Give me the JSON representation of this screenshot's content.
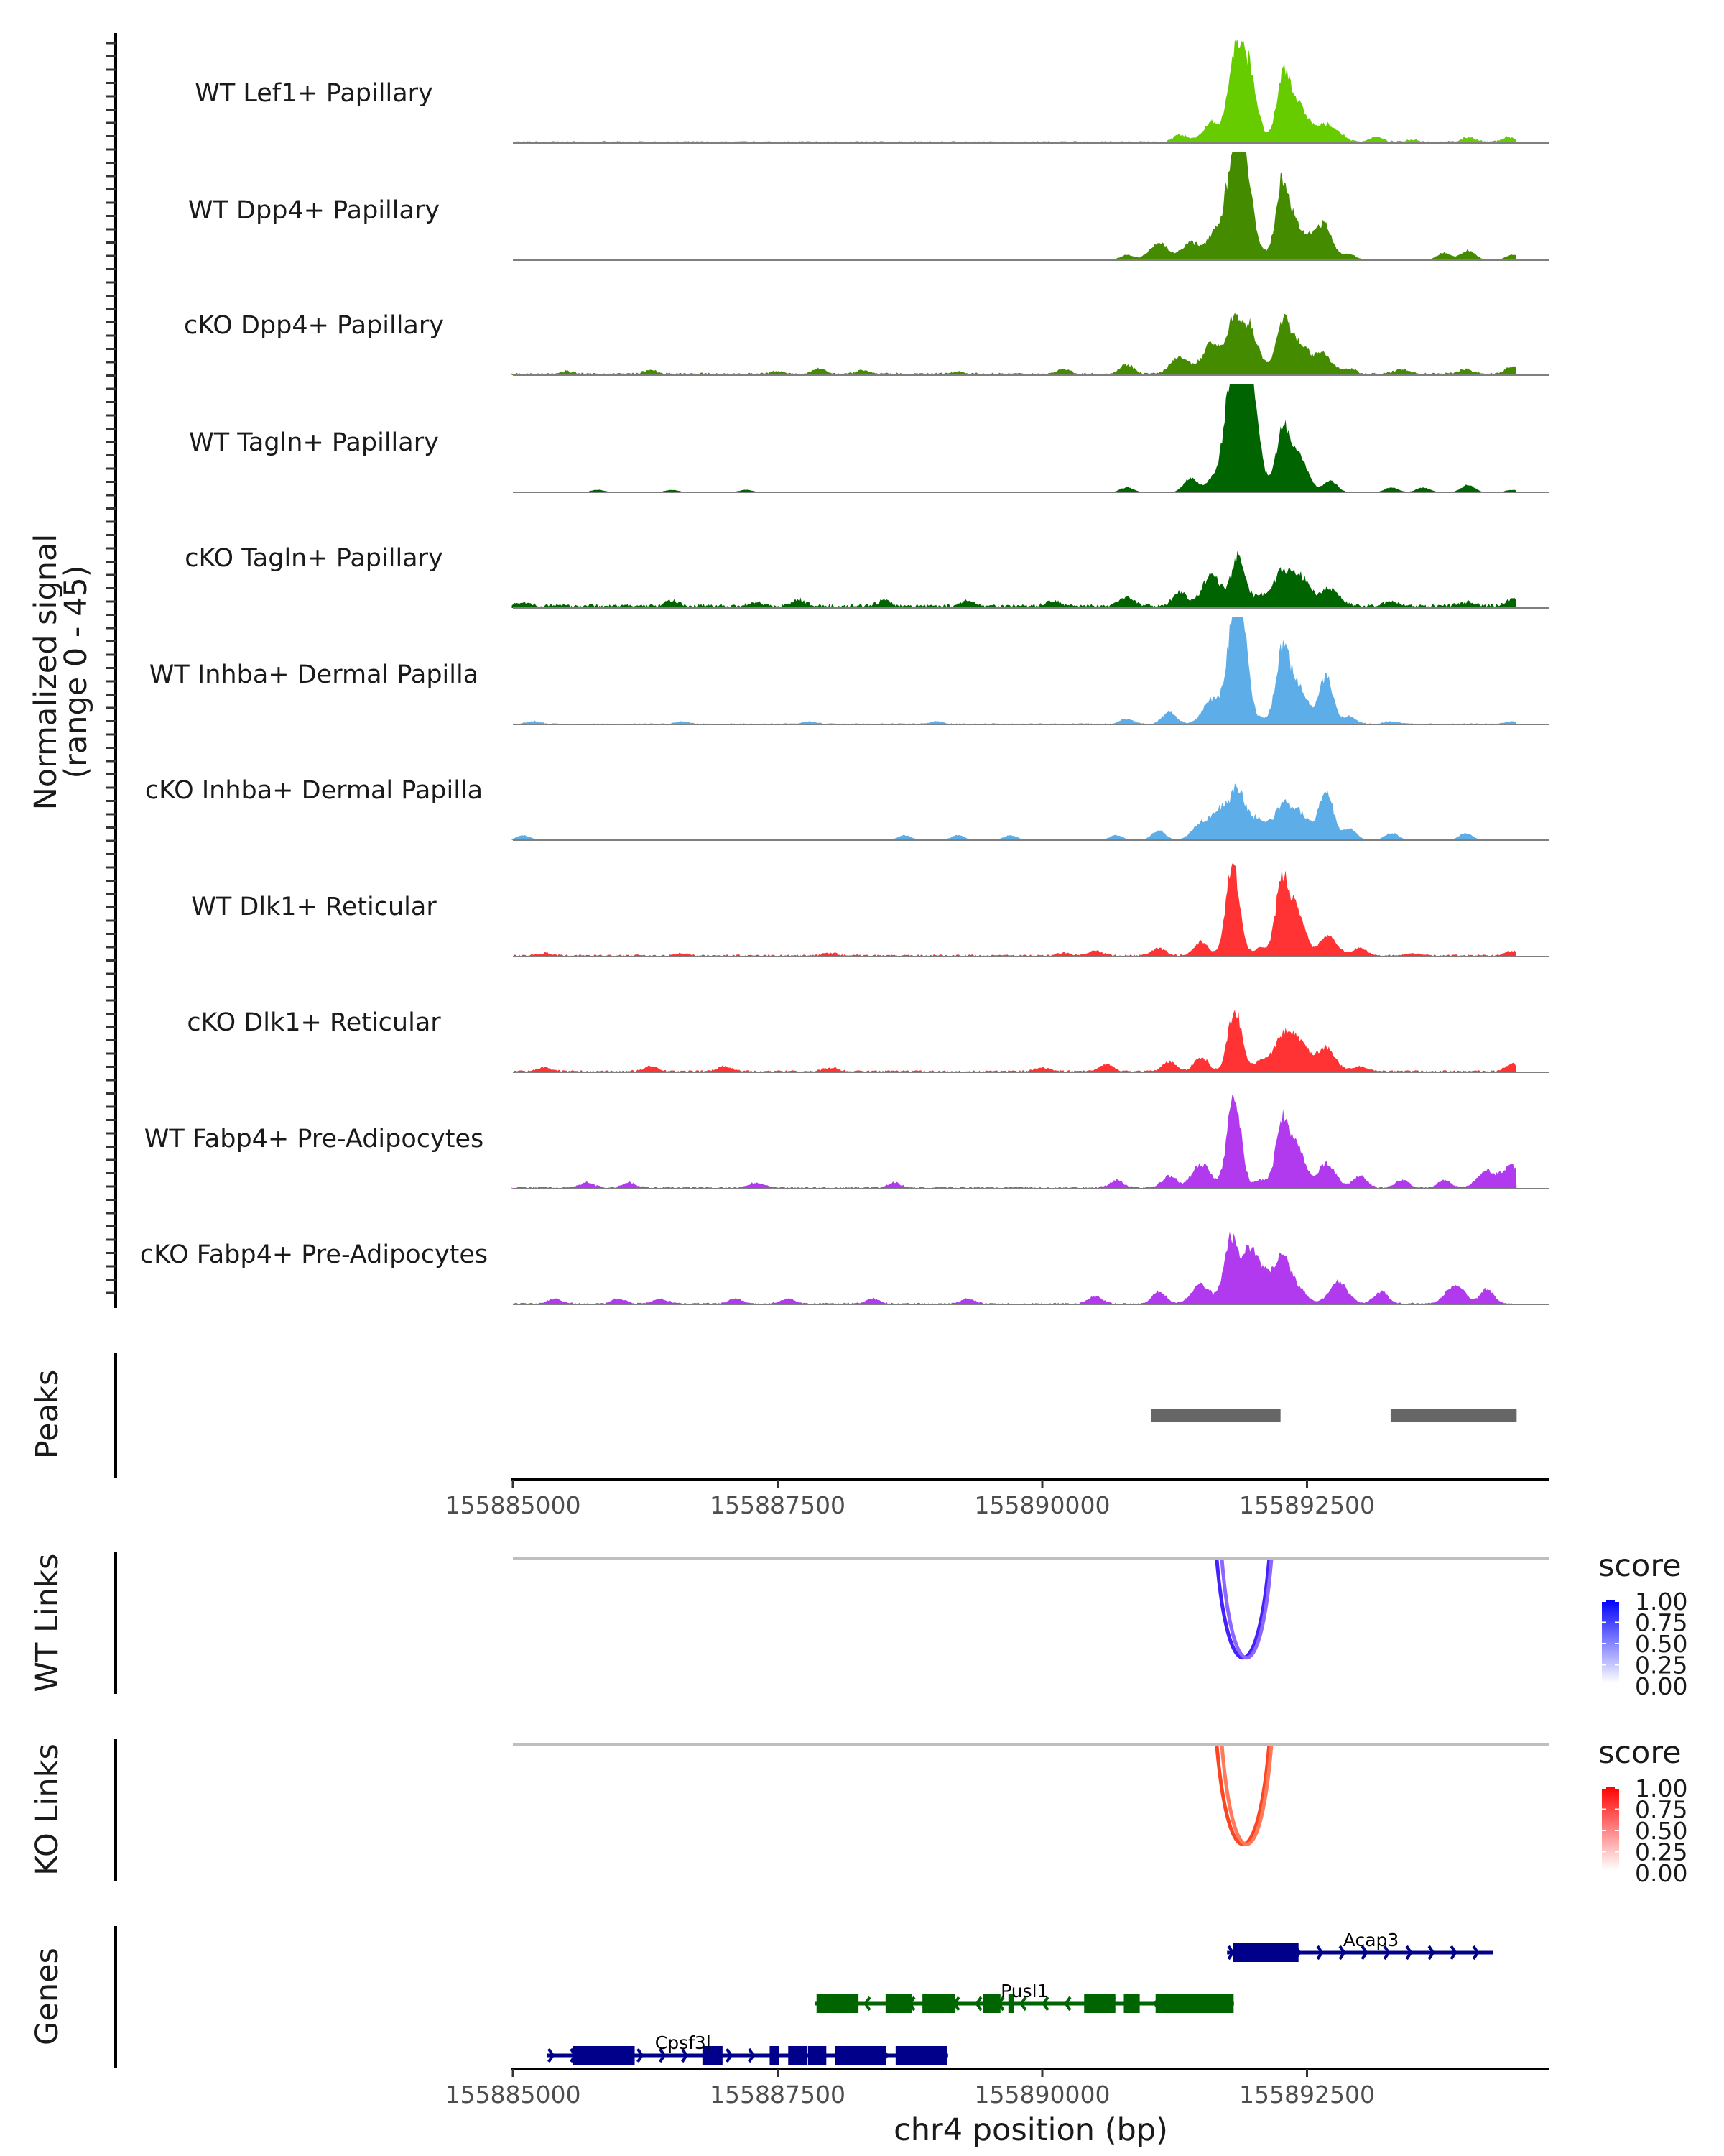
{
  "chart_data": {
    "type": "area",
    "title": "",
    "region": "chr4",
    "xlabel": "chr4 position (bp)",
    "ylabel": "Normalized signal",
    "ylabel_sub": "(range 0 - 45)",
    "xlim": [
      155884990,
      155894780
    ],
    "ylim": [
      0,
      45
    ],
    "x_ticks": [
      155885000,
      155887500,
      155890000,
      155892500
    ],
    "x_tick_labels": [
      "155885000",
      "155887500",
      "155890000",
      "155892500"
    ],
    "grid": false,
    "signal_end_bp": 155894480,
    "tracks": [
      {
        "name": "WT Lef1+ Papillary",
        "color": "#66CC00",
        "peaks": [
          [
            155891300,
            3
          ],
          [
            155891600,
            8
          ],
          [
            155891820,
            36
          ],
          [
            155891950,
            30
          ],
          [
            155892060,
            3
          ],
          [
            155892280,
            27
          ],
          [
            155892420,
            14
          ],
          [
            155892560,
            2
          ],
          [
            155892700,
            7
          ],
          [
            155892850,
            1
          ],
          [
            155893150,
            2
          ],
          [
            155893500,
            1
          ],
          [
            155894030,
            2
          ],
          [
            155894400,
            2
          ]
        ],
        "background": 0.5
      },
      {
        "name": "WT Dpp4+ Papillary",
        "color": "#458B00",
        "peaks": [
          [
            155890800,
            2
          ],
          [
            155891100,
            7
          ],
          [
            155891400,
            7
          ],
          [
            155891650,
            13
          ],
          [
            155891810,
            42
          ],
          [
            155891920,
            38
          ],
          [
            155892060,
            3
          ],
          [
            155892270,
            32
          ],
          [
            155892420,
            12
          ],
          [
            155892650,
            15
          ],
          [
            155892900,
            2
          ],
          [
            155893800,
            3
          ],
          [
            155894020,
            4
          ],
          [
            155894440,
            2
          ]
        ],
        "background": 0.2
      },
      {
        "name": "cKO Dpp4+ Papillary",
        "color": "#458B00",
        "peaks": [
          [
            155885500,
            1
          ],
          [
            155886300,
            1.5
          ],
          [
            155887500,
            1
          ],
          [
            155887900,
            2
          ],
          [
            155888300,
            1.5
          ],
          [
            155889200,
            1
          ],
          [
            155890200,
            2
          ],
          [
            155890800,
            4
          ],
          [
            155891300,
            7
          ],
          [
            155891600,
            13
          ],
          [
            155891810,
            22
          ],
          [
            155891950,
            18
          ],
          [
            155892060,
            5
          ],
          [
            155892270,
            20
          ],
          [
            155892420,
            13
          ],
          [
            155892650,
            8
          ],
          [
            155892900,
            2
          ],
          [
            155893400,
            2
          ],
          [
            155894000,
            2
          ],
          [
            155894440,
            3
          ]
        ],
        "background": 0.6
      },
      {
        "name": "WT Tagln+ Papillary",
        "color": "#006400",
        "peaks": [
          [
            155885800,
            1
          ],
          [
            155886500,
            1
          ],
          [
            155887200,
            1
          ],
          [
            155890800,
            2
          ],
          [
            155891400,
            6
          ],
          [
            155891650,
            7
          ],
          [
            155891780,
            37
          ],
          [
            155891880,
            40
          ],
          [
            155891980,
            38
          ],
          [
            155892060,
            4
          ],
          [
            155892270,
            24
          ],
          [
            155892420,
            15
          ],
          [
            155892720,
            5
          ],
          [
            155893300,
            2
          ],
          [
            155893600,
            2
          ],
          [
            155894020,
            3
          ],
          [
            155894440,
            1
          ]
        ],
        "background": 0
      },
      {
        "name": "cKO Tagln+ Papillary",
        "color": "#006400",
        "peaks": [
          [
            155885100,
            1.5
          ],
          [
            155886500,
            2
          ],
          [
            155887300,
            1.5
          ],
          [
            155887700,
            2.5
          ],
          [
            155888500,
            2
          ],
          [
            155889300,
            2
          ],
          [
            155890100,
            2
          ],
          [
            155890800,
            4
          ],
          [
            155891300,
            6
          ],
          [
            155891600,
            13
          ],
          [
            155891850,
            20
          ],
          [
            155892050,
            4
          ],
          [
            155892270,
            14
          ],
          [
            155892450,
            11
          ],
          [
            155892720,
            7
          ],
          [
            155893300,
            2
          ],
          [
            155894000,
            1.5
          ],
          [
            155894440,
            3
          ]
        ],
        "background": 1
      },
      {
        "name": "WT Inhba+ Dermal Papilla",
        "color": "#5DADE8",
        "peaks": [
          [
            155885200,
            1
          ],
          [
            155886600,
            1
          ],
          [
            155887800,
            1
          ],
          [
            155889000,
            1
          ],
          [
            155890800,
            2
          ],
          [
            155891200,
            5
          ],
          [
            155891600,
            10
          ],
          [
            155891800,
            33
          ],
          [
            155891880,
            38
          ],
          [
            155892060,
            2
          ],
          [
            155892270,
            30
          ],
          [
            155892420,
            15
          ],
          [
            155892680,
            20
          ],
          [
            155892900,
            3
          ],
          [
            155893300,
            1
          ],
          [
            155894440,
            1
          ]
        ],
        "background": 0.3
      },
      {
        "name": "cKO Inhba+ Dermal Papilla",
        "color": "#5DADE8",
        "peaks": [
          [
            155885100,
            2
          ],
          [
            155888700,
            2
          ],
          [
            155889200,
            2
          ],
          [
            155889700,
            2
          ],
          [
            155890700,
            2
          ],
          [
            155891100,
            4
          ],
          [
            155891500,
            7
          ],
          [
            155891700,
            13
          ],
          [
            155891850,
            18
          ],
          [
            155892020,
            9
          ],
          [
            155892270,
            14
          ],
          [
            155892450,
            10
          ],
          [
            155892680,
            22
          ],
          [
            155892900,
            5
          ],
          [
            155893300,
            3
          ],
          [
            155894000,
            3
          ]
        ],
        "background": 0
      },
      {
        "name": "WT Dlk1+ Reticular",
        "color": "#FF3333",
        "peaks": [
          [
            155885300,
            1
          ],
          [
            155886600,
            1
          ],
          [
            155888000,
            1
          ],
          [
            155890200,
            1
          ],
          [
            155890500,
            2
          ],
          [
            155891100,
            3
          ],
          [
            155891500,
            6
          ],
          [
            155891800,
            38
          ],
          [
            155892060,
            3
          ],
          [
            155892270,
            33
          ],
          [
            155892420,
            18
          ],
          [
            155892700,
            8
          ],
          [
            155893000,
            3
          ],
          [
            155893500,
            1
          ],
          [
            155894440,
            2
          ]
        ],
        "background": 0.5
      },
      {
        "name": "cKO Dlk1+ Reticular",
        "color": "#FF3333",
        "peaks": [
          [
            155885300,
            1.5
          ],
          [
            155886300,
            2
          ],
          [
            155887000,
            2
          ],
          [
            155888000,
            1.5
          ],
          [
            155890000,
            1.5
          ],
          [
            155890600,
            3
          ],
          [
            155891200,
            4
          ],
          [
            155891500,
            6
          ],
          [
            155891820,
            26
          ],
          [
            155892060,
            4
          ],
          [
            155892270,
            14
          ],
          [
            155892430,
            11
          ],
          [
            155892680,
            10
          ],
          [
            155893000,
            2
          ],
          [
            155894440,
            3
          ]
        ],
        "background": 0.5
      },
      {
        "name": "WT Fabp4+ Pre-Adipocytes",
        "color": "#B23AEE",
        "peaks": [
          [
            155885700,
            2
          ],
          [
            155886100,
            2
          ],
          [
            155887300,
            2
          ],
          [
            155888600,
            2
          ],
          [
            155890700,
            3
          ],
          [
            155891200,
            5
          ],
          [
            155891500,
            10
          ],
          [
            155891810,
            39
          ],
          [
            155892060,
            3
          ],
          [
            155892270,
            28
          ],
          [
            155892420,
            16
          ],
          [
            155892680,
            10
          ],
          [
            155893000,
            5
          ],
          [
            155893400,
            3
          ],
          [
            155893800,
            3
          ],
          [
            155894200,
            7
          ],
          [
            155894440,
            9
          ]
        ],
        "background": 0.5
      },
      {
        "name": "cKO Fabp4+ Pre-Adipocytes",
        "color": "#B23AEE",
        "peaks": [
          [
            155885400,
            2
          ],
          [
            155886000,
            2
          ],
          [
            155886400,
            2
          ],
          [
            155887100,
            2
          ],
          [
            155887600,
            2
          ],
          [
            155888400,
            2
          ],
          [
            155889300,
            2
          ],
          [
            155890500,
            3
          ],
          [
            155891100,
            5
          ],
          [
            155891500,
            8
          ],
          [
            155891780,
            28
          ],
          [
            155891950,
            20
          ],
          [
            155892100,
            13
          ],
          [
            155892270,
            17
          ],
          [
            155892400,
            7
          ],
          [
            155892800,
            9
          ],
          [
            155893200,
            5
          ],
          [
            155893900,
            8
          ],
          [
            155894200,
            6
          ]
        ],
        "background": 0.4
      }
    ],
    "peaks_track": {
      "label": "Peaks",
      "color": "#666666",
      "regions": [
        [
          155891030,
          155892250
        ],
        [
          155893290,
          155894480
        ]
      ]
    },
    "links": [
      {
        "label": "WT Links",
        "legend_title": "score",
        "color_low": "#FFFFFF",
        "color_high": "#0000FF",
        "arcs": [
          {
            "start": 155891610,
            "end": 155892180,
            "score": 0.95
          },
          {
            "start": 155891660,
            "end": 155892200,
            "score": 0.65
          }
        ]
      },
      {
        "label": "KO Links",
        "legend_title": "score",
        "color_low": "#FFFFFF",
        "color_high": "#FF0000",
        "arcs": [
          {
            "start": 155891610,
            "end": 155892180,
            "score": 0.9
          },
          {
            "start": 155891660,
            "end": 155892200,
            "score": 0.6
          }
        ]
      }
    ],
    "legend_ticks": [
      "1.00",
      "0.75",
      "0.50",
      "0.25",
      "0.00"
    ],
    "genes": {
      "label": "Genes",
      "items": [
        {
          "name": "Acap3",
          "strand": "+",
          "color": "#00008B",
          "row": 0,
          "start": 155891745,
          "end": 155894260,
          "exons": [
            [
              155891800,
              155892420
            ]
          ]
        },
        {
          "name": "Pusl1",
          "strand": "-",
          "color": "#006400",
          "row": 1,
          "start": 155887855,
          "end": 155891810,
          "exons": [
            [
              155887868,
              155888264
            ],
            [
              155888520,
              155888765
            ],
            [
              155888868,
              155889175
            ],
            [
              155889440,
              155889605
            ],
            [
              155889680,
              155889735
            ],
            [
              155890395,
              155890690
            ],
            [
              155890770,
              155890920
            ],
            [
              155891070,
              155891807
            ]
          ]
        },
        {
          "name": "Cpsf3l",
          "strand": "+",
          "color": "#00008B",
          "row": 2,
          "start": 155885324,
          "end": 155889110,
          "exons": [
            [
              155885563,
              155886150
            ],
            [
              155886790,
              155886980
            ],
            [
              155887425,
              155887512
            ],
            [
              155887600,
              155887775
            ],
            [
              155887787,
              155887960
            ],
            [
              155888040,
              155888524
            ],
            [
              155888615,
              155889100
            ]
          ]
        }
      ]
    }
  }
}
